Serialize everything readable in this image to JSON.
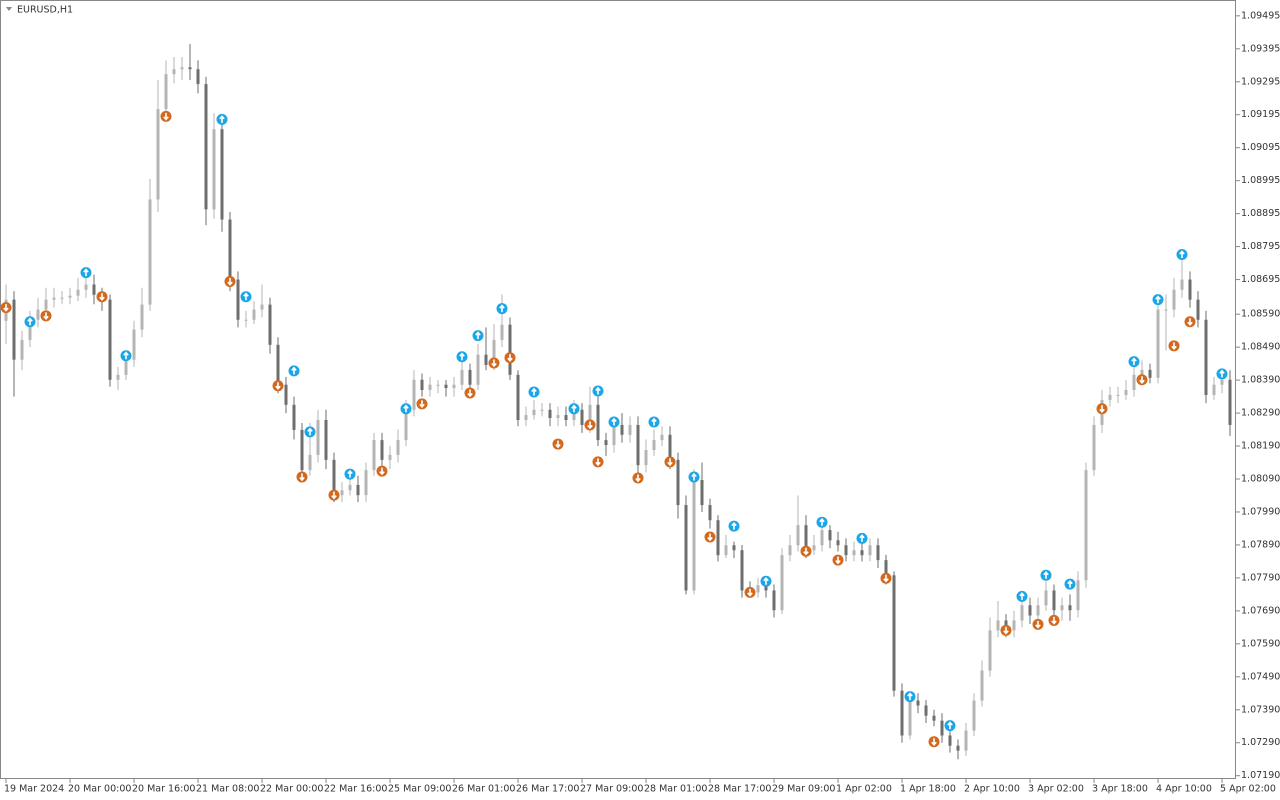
{
  "chart_data": {
    "type": "candlestick",
    "title": "EURUSD,H1",
    "up_color": "#b4b4b4",
    "down_color": "#6e6e6e",
    "ylim": [
      1.0718,
      1.0954
    ],
    "yticks": [
      1.09495,
      1.09395,
      1.09295,
      1.09195,
      1.09095,
      1.08995,
      1.08895,
      1.08795,
      1.08695,
      {
        "value": 1.0859,
        "label": "1.08590"
      },
      {
        "value": 1.0849,
        "label": "1.08490"
      },
      {
        "value": 1.0839,
        "label": "1.08390"
      },
      {
        "value": 1.0829,
        "label": "1.08290"
      },
      {
        "value": 1.0819,
        "label": "1.08190"
      },
      {
        "value": 1.0809,
        "label": "1.08090"
      },
      {
        "value": 1.0799,
        "label": "1.07990"
      },
      {
        "value": 1.0789,
        "label": "1.07890"
      },
      {
        "value": 1.0779,
        "label": "1.07790"
      },
      {
        "value": 1.0769,
        "label": "1.07690"
      },
      {
        "value": 1.0759,
        "label": "1.07590"
      },
      {
        "value": 1.0749,
        "label": "1.07490"
      },
      {
        "value": 1.0739,
        "label": "1.07390"
      },
      {
        "value": 1.0729,
        "label": "1.07290"
      },
      {
        "value": 1.0719,
        "label": "1.07190"
      }
    ],
    "categories": [
      "19 Mar 2024",
      null,
      null,
      null,
      null,
      null,
      null,
      null,
      "20 Mar 00:00",
      null,
      null,
      null,
      null,
      null,
      null,
      null,
      "20 Mar 16:00",
      null,
      null,
      null,
      null,
      null,
      null,
      null,
      "21 Mar 08:00",
      null,
      null,
      null,
      null,
      null,
      null,
      null,
      "22 Mar 00:00",
      null,
      null,
      null,
      null,
      null,
      null,
      null,
      "22 Mar 16:00",
      null,
      null,
      null,
      null,
      null,
      null,
      null,
      "25 Mar 09:00",
      null,
      null,
      null,
      null,
      null,
      null,
      null,
      "26 Mar 01:00",
      null,
      null,
      null,
      null,
      null,
      null,
      null,
      "26 Mar 17:00",
      null,
      null,
      null,
      null,
      null,
      null,
      null,
      "27 Mar 09:00",
      null,
      null,
      null,
      null,
      null,
      null,
      null,
      "28 Mar 01:00",
      null,
      null,
      null,
      null,
      null,
      null,
      null,
      "28 Mar 17:00",
      null,
      null,
      null,
      null,
      null,
      null,
      null,
      "29 Mar 09:00",
      null,
      null,
      null,
      null,
      null,
      null,
      null,
      "1 Apr 02:00",
      null,
      null,
      null,
      null,
      null,
      null,
      null,
      "1 Apr 18:00",
      null,
      null,
      null,
      null,
      null,
      null,
      null,
      "2 Apr 10:00",
      null,
      null,
      null,
      null,
      null,
      null,
      null,
      "3 Apr 02:00",
      null,
      null,
      null,
      null,
      null,
      null,
      null,
      "3 Apr 18:00",
      null,
      null,
      null,
      null,
      null,
      null,
      null,
      "4 Apr 10:00",
      null,
      null,
      null,
      null,
      null,
      null,
      null,
      "5 Apr 02:00",
      null
    ],
    "open": [
      1.0857,
      1.08634,
      1.08452,
      1.08512,
      1.08573,
      1.08604,
      1.08634,
      1.0864,
      1.0864,
      1.08646,
      1.08664,
      1.0868,
      1.08649,
      1.08634,
      1.08391,
      1.08406,
      1.08452,
      1.08543,
      1.08619,
      1.08938,
      1.09212,
      1.09318,
      1.09333,
      1.09339,
      1.09333,
      1.09288,
      1.08908,
      1.09151,
      1.08877,
      1.08695,
      1.08573,
      1.08573,
      1.08604,
      1.08619,
      1.08497,
      1.08376,
      1.08315,
      1.08239,
      1.08117,
      1.08163,
      1.08269,
      1.08148,
      1.08041,
      1.08056,
      1.08072,
      1.08041,
      1.08117,
      1.08208,
      1.08148,
      1.08163,
      1.08208,
      1.083,
      1.08391,
      1.0836,
      1.08376,
      1.08376,
      1.08366,
      1.08376,
      1.08421,
      1.08376,
      1.08467,
      1.08436,
      1.08512,
      1.08558,
      1.08406,
      1.08269,
      1.08284,
      1.083,
      1.083,
      1.08275,
      1.08284,
      1.08269,
      1.083,
      1.08254,
      1.08315,
      1.08208,
      1.08193,
      1.08254,
      1.08224,
      1.08254,
      1.08132,
      1.08178,
      1.08208,
      1.08224,
      1.08148,
      1.08011,
      1.07752,
      1.08087,
      1.08011,
      1.07965,
      1.07859,
      1.07889,
      1.07874,
      1.07752,
      1.07746,
      1.07768,
      1.07752,
      1.07692,
      1.07859,
      1.07889,
      1.0795,
      1.07874,
      1.07889,
      1.07935,
      1.07904,
      1.07889,
      1.07859,
      1.07874,
      1.07859,
      1.07889,
      1.07844,
      1.07798,
      1.07448,
      1.07312,
      1.07418,
      1.07403,
      1.07372,
      1.07357,
      1.07312,
      1.07281,
      1.07266,
      1.07327,
      1.07418,
      1.07509,
      1.07631,
      1.07661,
      1.07631,
      1.07661,
      1.07707,
      1.07676,
      1.07707,
      1.07752,
      1.07692,
      1.07707,
      1.07692,
      1.07783,
      1.08117,
      1.08254,
      1.0833,
      1.08345,
      1.08345,
      1.0836,
      1.08406,
      1.08421,
      1.08397,
      1.08604,
      1.08604,
      1.08664,
      1.08695,
      1.08634,
      1.08573,
      1.08345,
      1.08376,
      1.08391
    ],
    "high": [
      1.0868,
      1.0866,
      1.0854,
      1.086,
      1.0864,
      1.0867,
      1.0867,
      1.0866,
      1.0867,
      1.087,
      1.0872,
      1.0871,
      1.0867,
      1.0865,
      1.0843,
      1.0848,
      1.0857,
      1.0867,
      1.09,
      1.093,
      1.0936,
      1.0937,
      1.0937,
      1.0941,
      1.0936,
      1.0931,
      1.092,
      1.0918,
      1.089,
      1.0872,
      1.086,
      1.0863,
      1.0868,
      1.0864,
      1.0852,
      1.084,
      1.0834,
      1.0826,
      1.0826,
      1.083,
      1.083,
      1.0817,
      1.0808,
      1.0811,
      1.081,
      1.0814,
      1.0823,
      1.0823,
      1.0819,
      1.0824,
      1.0833,
      1.0842,
      1.0841,
      1.084,
      1.0839,
      1.0839,
      1.084,
      1.0845,
      1.0844,
      1.085,
      1.0855,
      1.0856,
      1.0865,
      1.0858,
      1.0842,
      1.0831,
      1.0833,
      1.0832,
      1.0832,
      1.0831,
      1.0831,
      1.0833,
      1.0832,
      1.0837,
      1.0834,
      1.0823,
      1.0828,
      1.0829,
      1.0828,
      1.0828,
      1.0821,
      1.0824,
      1.0825,
      1.0825,
      1.0817,
      1.0804,
      1.0812,
      1.0814,
      1.0803,
      1.0798,
      1.0792,
      1.079,
      1.0789,
      1.0778,
      1.0779,
      1.0779,
      1.0777,
      1.0788,
      1.0792,
      1.0804,
      1.0798,
      1.0792,
      1.0796,
      1.0795,
      1.0793,
      1.0791,
      1.079,
      1.079,
      1.0791,
      1.0791,
      1.0786,
      1.0781,
      1.0747,
      1.0744,
      1.0744,
      1.0742,
      1.0739,
      1.0738,
      1.0733,
      1.073,
      1.0735,
      1.0744,
      1.0754,
      1.0767,
      1.0772,
      1.0768,
      1.0769,
      1.0773,
      1.0773,
      1.0773,
      1.0778,
      1.0777,
      1.0773,
      1.0774,
      1.0781,
      1.0814,
      1.0828,
      1.0836,
      1.0837,
      1.0837,
      1.0839,
      1.0844,
      1.0845,
      1.0844,
      1.0863,
      1.0865,
      1.087,
      1.0878,
      1.0872,
      1.0866,
      1.086,
      1.084,
      1.0842,
      1.0842
    ],
    "low": [
      1.085,
      1.0834,
      1.0842,
      1.0849,
      1.0855,
      1.0858,
      1.0861,
      1.0862,
      1.0862,
      1.0863,
      1.0864,
      1.0862,
      1.086,
      1.0837,
      1.0836,
      1.0839,
      1.0843,
      1.0852,
      1.086,
      1.089,
      1.0918,
      1.0929,
      1.093,
      1.093,
      1.0926,
      1.0886,
      1.0888,
      1.0884,
      1.0866,
      1.0855,
      1.0855,
      1.0856,
      1.0858,
      1.0847,
      1.0835,
      1.0829,
      1.0821,
      1.0808,
      1.081,
      1.0814,
      1.0812,
      1.0802,
      1.0802,
      1.0804,
      1.0802,
      1.0802,
      1.081,
      1.0812,
      1.0812,
      1.0814,
      1.0819,
      1.0828,
      1.0834,
      1.0834,
      1.0835,
      1.0834,
      1.0834,
      1.0836,
      1.0835,
      1.0836,
      1.0842,
      1.0842,
      1.0849,
      1.0839,
      1.0825,
      1.0825,
      1.0827,
      1.0828,
      1.0825,
      1.0825,
      1.0825,
      1.0825,
      1.0823,
      1.0823,
      1.0819,
      1.0816,
      1.0817,
      1.082,
      1.082,
      1.081,
      1.0811,
      1.0816,
      1.0819,
      1.0812,
      1.0797,
      1.0774,
      1.0774,
      1.0799,
      1.0794,
      1.0784,
      1.0785,
      1.0785,
      1.0773,
      1.0773,
      1.0773,
      1.0773,
      1.0767,
      1.0768,
      1.0784,
      1.0787,
      1.0785,
      1.0786,
      1.0787,
      1.0788,
      1.0787,
      1.0784,
      1.0784,
      1.0784,
      1.0784,
      1.0782,
      1.0777,
      1.0743,
      1.0729,
      1.073,
      1.0738,
      1.0735,
      1.0734,
      1.0729,
      1.0726,
      1.0724,
      1.0725,
      1.0731,
      1.074,
      1.0749,
      1.0761,
      1.0761,
      1.0761,
      1.0764,
      1.0765,
      1.0766,
      1.0769,
      1.0767,
      1.0766,
      1.0766,
      1.0767,
      1.0776,
      1.081,
      1.0823,
      1.0831,
      1.0832,
      1.0833,
      1.0834,
      1.0839,
      1.0838,
      1.0838,
      1.0848,
      1.0858,
      1.0864,
      1.0861,
      1.0855,
      1.0832,
      1.0833,
      1.0835,
      1.0822
    ],
    "close": [
      1.08634,
      1.08452,
      1.08512,
      1.08573,
      1.08604,
      1.08634,
      1.0864,
      1.0864,
      1.08646,
      1.08664,
      1.0868,
      1.08649,
      1.08634,
      1.08391,
      1.08406,
      1.08452,
      1.08543,
      1.08619,
      1.08938,
      1.09212,
      1.09318,
      1.09333,
      1.09339,
      1.09333,
      1.09288,
      1.08908,
      1.09151,
      1.08877,
      1.08695,
      1.08573,
      1.08573,
      1.08604,
      1.08619,
      1.08497,
      1.08376,
      1.08315,
      1.08239,
      1.08117,
      1.08163,
      1.08269,
      1.08148,
      1.08041,
      1.08056,
      1.08072,
      1.08041,
      1.08117,
      1.08208,
      1.08148,
      1.08163,
      1.08208,
      1.083,
      1.08391,
      1.0836,
      1.08376,
      1.08376,
      1.08366,
      1.08376,
      1.08421,
      1.08376,
      1.08467,
      1.08436,
      1.08512,
      1.08558,
      1.08406,
      1.08269,
      1.08284,
      1.083,
      1.083,
      1.08275,
      1.08284,
      1.08269,
      1.083,
      1.08254,
      1.08315,
      1.08208,
      1.08193,
      1.08254,
      1.08224,
      1.08254,
      1.08132,
      1.08178,
      1.08208,
      1.08224,
      1.08148,
      1.08011,
      1.07752,
      1.08087,
      1.08011,
      1.07965,
      1.07859,
      1.07889,
      1.07874,
      1.07752,
      1.07746,
      1.07768,
      1.07752,
      1.07692,
      1.07859,
      1.07889,
      1.0795,
      1.07874,
      1.07889,
      1.07935,
      1.07904,
      1.07889,
      1.07859,
      1.07874,
      1.07859,
      1.07889,
      1.07844,
      1.07798,
      1.07448,
      1.07312,
      1.07418,
      1.07403,
      1.07372,
      1.07357,
      1.07312,
      1.07281,
      1.07266,
      1.07327,
      1.07418,
      1.07509,
      1.07631,
      1.07661,
      1.07631,
      1.07661,
      1.07707,
      1.07676,
      1.07707,
      1.07752,
      1.07692,
      1.07707,
      1.07692,
      1.07783,
      1.08117,
      1.08254,
      1.0833,
      1.08345,
      1.08345,
      1.0836,
      1.08406,
      1.08421,
      1.08397,
      1.08604,
      1.08604,
      1.08664,
      1.08695,
      1.08634,
      1.08573,
      1.08345,
      1.08376,
      1.08391,
      1.08254
    ],
    "up_signals": {
      "color": "#1ca6e6",
      "x": [
        3,
        10,
        15,
        27,
        30,
        36,
        38,
        43,
        50,
        57,
        59,
        62,
        66,
        71,
        74,
        76,
        81,
        86,
        91,
        95,
        102,
        107,
        113,
        118,
        127,
        130,
        133,
        141,
        144,
        147,
        152
      ],
      "values": [
        1.08567,
        1.08716,
        1.08464,
        1.09181,
        1.08643,
        1.08418,
        1.08233,
        1.08105,
        1.08303,
        1.08461,
        1.08525,
        1.08607,
        1.08354,
        1.08303,
        1.08357,
        1.08263,
        1.08263,
        1.08096,
        1.07947,
        1.0778,
        1.07959,
        1.0791,
        1.0743,
        1.07342,
        1.07734,
        1.07798,
        1.07771,
        1.08446,
        1.08634,
        1.08771,
        1.08409
      ]
    },
    "down_signals": {
      "color": "#d2691e",
      "x": [
        0,
        5,
        12,
        20,
        28,
        34,
        37,
        41,
        47,
        52,
        58,
        61,
        63,
        69,
        73,
        74,
        79,
        83,
        88,
        93,
        100,
        104,
        110,
        116,
        125,
        129,
        131,
        137,
        142,
        146,
        148
      ],
      "values": [
        1.0861,
        1.08585,
        1.08643,
        1.0919,
        1.08689,
        1.08373,
        1.08096,
        1.08041,
        1.08114,
        1.08318,
        1.08351,
        1.08442,
        1.08458,
        1.08196,
        1.08254,
        1.08142,
        1.08093,
        1.08142,
        1.07914,
        1.07746,
        1.07871,
        1.07844,
        1.07789,
        1.07293,
        1.07631,
        1.07649,
        1.07661,
        1.08303,
        1.08391,
        1.08494,
        1.08567
      ]
    }
  }
}
